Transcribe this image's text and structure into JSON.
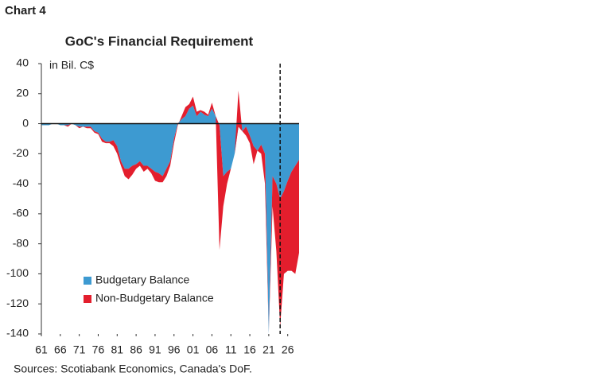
{
  "chart_data": {
    "type": "stacked_area",
    "label": "Chart 4",
    "title": "GoC's Financial Requirement",
    "y_unit_label": "in Bil. C$",
    "source": "Sources: Scotiabank Economics, Canada's DoF.",
    "x": [
      1961,
      1962,
      1963,
      1964,
      1965,
      1966,
      1967,
      1968,
      1969,
      1970,
      1971,
      1972,
      1973,
      1974,
      1975,
      1976,
      1977,
      1978,
      1979,
      1980,
      1981,
      1982,
      1983,
      1984,
      1985,
      1986,
      1987,
      1988,
      1989,
      1990,
      1991,
      1992,
      1993,
      1994,
      1995,
      1996,
      1997,
      1998,
      1999,
      2000,
      2001,
      2002,
      2003,
      2004,
      2005,
      2006,
      2007,
      2008,
      2009,
      2010,
      2011,
      2012,
      2013,
      2014,
      2015,
      2016,
      2017,
      2018,
      2019,
      2020,
      2021,
      2022,
      2023,
      2024,
      2025,
      2026,
      2027,
      2028,
      2029
    ],
    "series": [
      {
        "name": "Budgetary Balance",
        "color": "#3d9ad1",
        "values": [
          -1,
          -1,
          -1,
          0,
          0,
          -1,
          -1,
          -1,
          0,
          -1,
          -2,
          -2,
          -2,
          -2,
          -5,
          -6,
          -10,
          -12,
          -12,
          -11,
          -15,
          -25,
          -30,
          -30,
          -28,
          -27,
          -25,
          -28,
          -28,
          -30,
          -32,
          -33,
          -35,
          -30,
          -25,
          -10,
          0,
          3,
          5,
          10,
          12,
          5,
          8,
          6,
          5,
          10,
          5,
          -1,
          -35,
          -32,
          -30,
          -20,
          -2,
          -5,
          -2,
          -8,
          -15,
          -18,
          -14,
          -20,
          -140,
          -35,
          -40,
          -50,
          -45,
          -38,
          -32,
          -28,
          -24
        ]
      },
      {
        "name": "Non-Budgetary Balance",
        "color": "#e31e2d",
        "values": [
          0,
          0,
          0,
          0,
          0,
          0,
          0,
          -1,
          0,
          0,
          -1,
          0,
          -1,
          -1,
          -1,
          -1,
          -2,
          -1,
          -1,
          -4,
          -5,
          -3,
          -5,
          -7,
          -6,
          -3,
          -3,
          -4,
          -2,
          -3,
          -6,
          -6,
          -4,
          -5,
          -3,
          -3,
          -1,
          2,
          6,
          3,
          6,
          3,
          1,
          2,
          1,
          4,
          0,
          -83,
          -20,
          -8,
          0,
          0,
          24,
          0,
          -6,
          -5,
          -12,
          0,
          -6,
          -20,
          0,
          -20,
          -45,
          -85,
          -55,
          -60,
          -66,
          -72,
          -62
        ]
      }
    ],
    "xlim": [
      1961,
      2029
    ],
    "xticks": [
      {
        "value": 1961,
        "label": "61"
      },
      {
        "value": 1966,
        "label": "66"
      },
      {
        "value": 1971,
        "label": "71"
      },
      {
        "value": 1976,
        "label": "76"
      },
      {
        "value": 1981,
        "label": "81"
      },
      {
        "value": 1986,
        "label": "86"
      },
      {
        "value": 1991,
        "label": "91"
      },
      {
        "value": 1996,
        "label": "96"
      },
      {
        "value": 2001,
        "label": "01"
      },
      {
        "value": 2006,
        "label": "06"
      },
      {
        "value": 2011,
        "label": "11"
      },
      {
        "value": 2016,
        "label": "16"
      },
      {
        "value": 2021,
        "label": "21"
      },
      {
        "value": 2026,
        "label": "26"
      }
    ],
    "ylim": [
      -140,
      40
    ],
    "yticks": [
      40,
      20,
      0,
      -20,
      -40,
      -60,
      -80,
      -100,
      -120,
      -140
    ],
    "marker_x": 2024,
    "grid": false
  }
}
